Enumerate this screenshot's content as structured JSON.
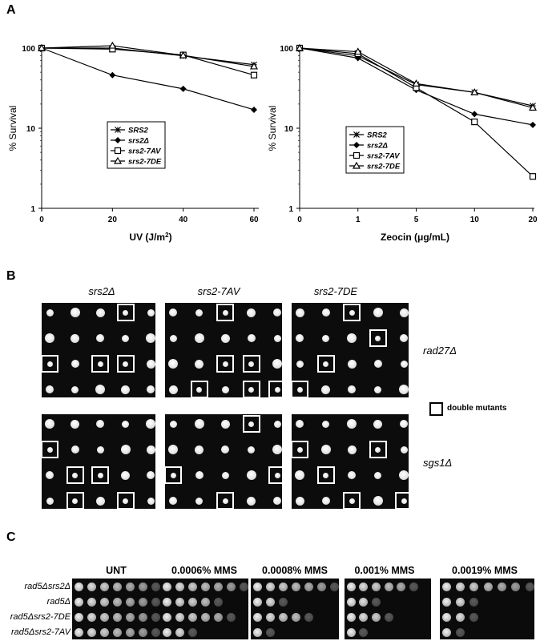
{
  "panels": {
    "a": "A",
    "b": "B",
    "c": "C"
  },
  "chart_data": [
    {
      "type": "line",
      "scale": "log",
      "xlabel": "UV (J/m²)",
      "ylabel": "% Survival",
      "x": [
        0,
        20,
        40,
        60
      ],
      "x_ticks": [
        "0",
        "20",
        "40",
        "60"
      ],
      "y_ticks": [
        "1",
        "10",
        "100"
      ],
      "ylim": [
        1,
        100
      ],
      "legend_position": "center",
      "series": [
        {
          "name": "SRS2",
          "marker": "asterisk",
          "values": [
            100,
            100,
            80,
            62
          ]
        },
        {
          "name": "srs2Δ",
          "marker": "diamond",
          "values": [
            100,
            46,
            31,
            17
          ]
        },
        {
          "name": "srs2-7AV",
          "marker": "open-square",
          "values": [
            100,
            97,
            82,
            46
          ]
        },
        {
          "name": "srs2-7DE",
          "marker": "open-triangle",
          "values": [
            100,
            107,
            81,
            59
          ]
        }
      ]
    },
    {
      "type": "line",
      "scale": "log",
      "xlabel": "Zeocin (μg/mL)",
      "ylabel": "% Survival",
      "x": [
        "0",
        "1",
        "5",
        "10",
        "20"
      ],
      "x_ticks": [
        "0",
        "1",
        "5",
        "10",
        "20"
      ],
      "y_ticks": [
        "1",
        "10",
        "100"
      ],
      "ylim": [
        1,
        100
      ],
      "legend_position": "center",
      "series": [
        {
          "name": "SRS2",
          "marker": "asterisk",
          "values": [
            100,
            80,
            35,
            28,
            19
          ]
        },
        {
          "name": "srs2Δ",
          "marker": "diamond",
          "values": [
            100,
            75,
            30,
            15,
            11
          ]
        },
        {
          "name": "srs2-7AV",
          "marker": "open-square",
          "values": [
            100,
            85,
            32,
            12,
            2.5
          ]
        },
        {
          "name": "srs2-7DE",
          "marker": "open-triangle",
          "values": [
            100,
            90,
            36,
            28,
            18
          ]
        }
      ]
    }
  ],
  "panel_b": {
    "columns": [
      "srs2Δ",
      "srs2-7AV",
      "srs2-7DE"
    ],
    "rows": [
      "rad27Δ",
      "sgs1Δ"
    ],
    "legend": "double mutants"
  },
  "panel_c": {
    "conditions": [
      "UNT",
      "0.0006% MMS",
      "0.0008% MMS",
      "0.001% MMS",
      "0.0019% MMS"
    ],
    "strains": [
      "rad5Δsrs2Δ",
      "rad5Δ",
      "rad5Δsrs2-7DE",
      "rad5Δsrs2-7AV"
    ]
  }
}
